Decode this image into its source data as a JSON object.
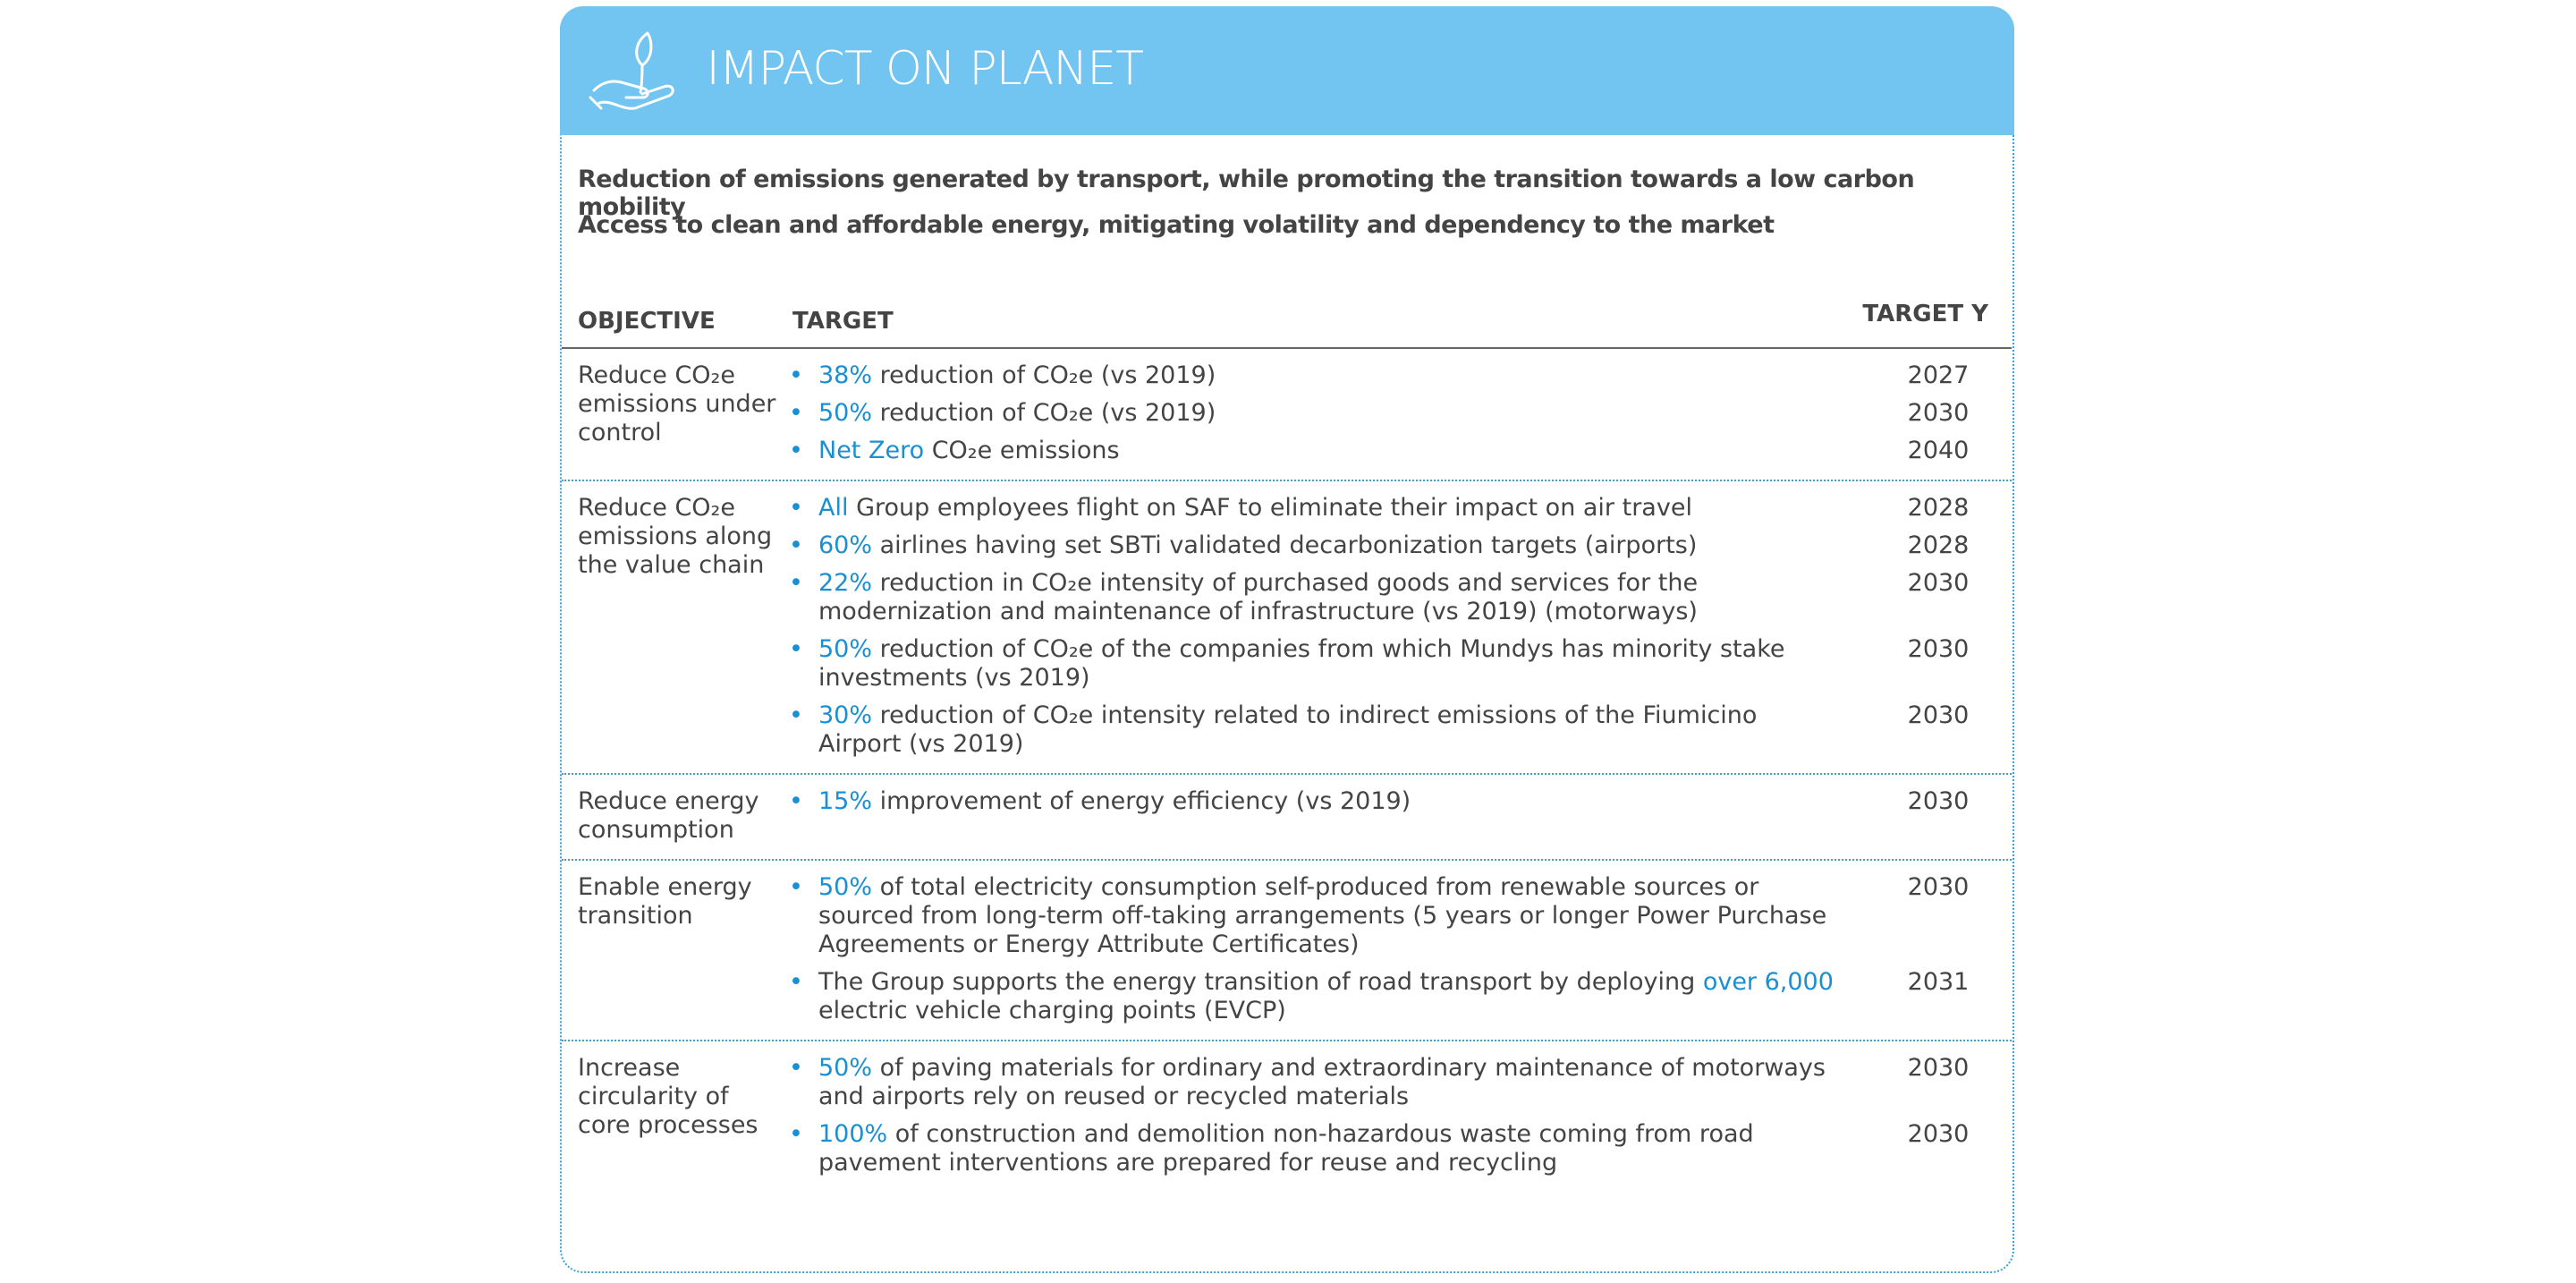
{
  "header": {
    "title": "IMPACT ON PLANET"
  },
  "intro": [
    "Reduction of emissions generated by transport, while promoting the transition towards a low carbon mobility",
    "Access to clean and affordable energy, mitigating volatility and dependency to the market"
  ],
  "columns": {
    "objective": "OBJECTIVE",
    "target": "TARGET",
    "year": "TARGET Y"
  },
  "rows": [
    {
      "objective": "Reduce CO₂e emissions under control",
      "targets": [
        {
          "parts": [
            {
              "text": "38%",
              "em": true
            },
            {
              "text": " reduction of CO₂e (vs 2019)",
              "em": false
            }
          ],
          "year": "2027"
        },
        {
          "parts": [
            {
              "text": "50%",
              "em": true
            },
            {
              "text": " reduction of CO₂e (vs 2019)",
              "em": false
            }
          ],
          "year": "2030"
        },
        {
          "parts": [
            {
              "text": "Net Zero",
              "em": true
            },
            {
              "text": " CO₂e emissions",
              "em": false
            }
          ],
          "year": "2040"
        }
      ]
    },
    {
      "objective": "Reduce CO₂e emissions along the value chain",
      "targets": [
        {
          "parts": [
            {
              "text": "All",
              "em": true
            },
            {
              "text": " Group employees flight on SAF to eliminate their impact on air travel",
              "em": false
            }
          ],
          "year": "2028"
        },
        {
          "parts": [
            {
              "text": "60%",
              "em": true
            },
            {
              "text": " airlines having set SBTi validated decarbonization targets (airports)",
              "em": false
            }
          ],
          "year": "2028"
        },
        {
          "parts": [
            {
              "text": "22%",
              "em": true
            },
            {
              "text": "  reduction in CO₂e intensity of purchased goods and services for the modernization and maintenance of infrastructure (vs 2019) (motorways)",
              "em": false
            }
          ],
          "year": "2030"
        },
        {
          "parts": [
            {
              "text": "50%",
              "em": true
            },
            {
              "text": " reduction of CO₂e of the companies from which Mundys has minority stake investments (vs 2019)",
              "em": false
            }
          ],
          "year": "2030"
        },
        {
          "parts": [
            {
              "text": "30%",
              "em": true
            },
            {
              "text": " reduction of CO₂e intensity related to indirect emissions of the Fiumicino Airport (vs 2019)",
              "em": false
            }
          ],
          "year": "2030"
        }
      ]
    },
    {
      "objective": "Reduce energy consumption",
      "targets": [
        {
          "parts": [
            {
              "text": "15%",
              "em": true
            },
            {
              "text": "  improvement of energy efficiency (vs 2019)",
              "em": false
            }
          ],
          "year": "2030"
        }
      ]
    },
    {
      "objective": "Enable energy transition",
      "targets": [
        {
          "parts": [
            {
              "text": "50%",
              "em": true
            },
            {
              "text": " of total electricity consumption self-produced from renewable sources or sourced from long-term off-taking arrangements (5 years or longer Power Purchase Agreements or Energy Attribute Certificates)",
              "em": false
            }
          ],
          "year": "2030"
        },
        {
          "parts": [
            {
              "text": "The Group supports the energy transition of road transport by deploying ",
              "em": false
            },
            {
              "text": "over 6,000",
              "em": true
            },
            {
              "text": " electric vehicle charging points (EVCP)",
              "em": false
            }
          ],
          "year": "2031"
        }
      ]
    },
    {
      "objective": "Increase circularity of core processes",
      "targets": [
        {
          "parts": [
            {
              "text": "50%",
              "em": true
            },
            {
              "text": " of paving materials for ordinary and extraordinary maintenance of motorways and airports rely on reused or recycled materials",
              "em": false
            }
          ],
          "year": "2030"
        },
        {
          "parts": [
            {
              "text": "100%",
              "em": true
            },
            {
              "text": " of construction and demolition non-hazardous waste coming from road pavement interventions are prepared for reuse and recycling",
              "em": false
            }
          ],
          "year": "2030"
        }
      ]
    }
  ]
}
